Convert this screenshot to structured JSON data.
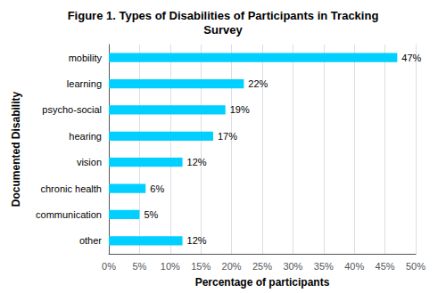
{
  "chart_data": {
    "type": "bar",
    "orientation": "horizontal",
    "title": "Figure 1. Types of Disabilities of Participants in Tracking\nSurvey",
    "categories": [
      "other",
      "communication",
      "chronic health",
      "vision",
      "hearing",
      "psycho-social",
      "learning",
      "mobility"
    ],
    "values": [
      12,
      5,
      6,
      12,
      17,
      19,
      22,
      47
    ],
    "value_labels": [
      "12%",
      "5%",
      "6%",
      "12%",
      "17%",
      "19%",
      "22%",
      "47%"
    ],
    "data_labels": true,
    "color": "#00CFFF",
    "xlabel": "Percentage of participants",
    "ylabel": "Documented Disability",
    "xlim": [
      0,
      50
    ],
    "xticks": [
      {
        "value": 0,
        "label": "0%"
      },
      {
        "value": 5,
        "label": "5%"
      },
      {
        "value": 10,
        "label": "10%"
      },
      {
        "value": 15,
        "label": "15%"
      },
      {
        "value": 20,
        "label": "20%"
      },
      {
        "value": 25,
        "label": "25%"
      },
      {
        "value": 30,
        "label": "30%"
      },
      {
        "value": 35,
        "label": "35%"
      },
      {
        "value": 40,
        "label": "40%"
      },
      {
        "value": 45,
        "label": "45%"
      },
      {
        "value": 50,
        "label": "50%"
      }
    ],
    "grid": true
  }
}
